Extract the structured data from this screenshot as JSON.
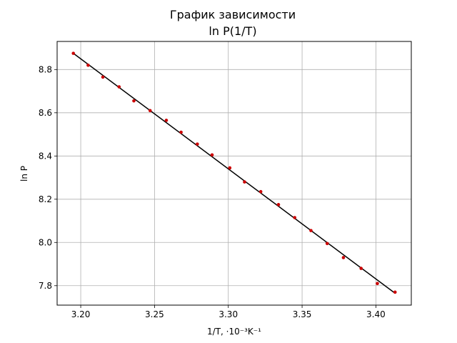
{
  "chart_data": {
    "type": "scatter",
    "title_line1": "График зависимости",
    "title_line2": "ln P(1/T)",
    "xlabel": "1/T, ·10⁻³K⁻¹",
    "ylabel": "ln P",
    "xlim": [
      3.184,
      3.424
    ],
    "ylim": [
      7.71,
      8.93
    ],
    "xticks": [
      3.2,
      3.25,
      3.3,
      3.35,
      3.4
    ],
    "xtick_labels": [
      "3.20",
      "3.25",
      "3.30",
      "3.35",
      "3.40"
    ],
    "yticks": [
      7.8,
      8.0,
      8.2,
      8.4,
      8.6,
      8.8
    ],
    "ytick_labels": [
      "7.8",
      "8.0",
      "8.2",
      "8.4",
      "8.6",
      "8.8"
    ],
    "grid": true,
    "series": [
      {
        "kind": "points",
        "color": "#cc0000",
        "x": [
          3.195,
          3.205,
          3.215,
          3.226,
          3.236,
          3.247,
          3.258,
          3.268,
          3.279,
          3.289,
          3.301,
          3.311,
          3.322,
          3.334,
          3.345,
          3.356,
          3.367,
          3.378,
          3.39,
          3.401,
          3.413
        ],
        "y": [
          8.875,
          8.82,
          8.765,
          8.72,
          8.655,
          8.61,
          8.565,
          8.51,
          8.455,
          8.405,
          8.345,
          8.28,
          8.235,
          8.175,
          8.115,
          8.055,
          7.995,
          7.93,
          7.88,
          7.81,
          7.77
        ]
      },
      {
        "kind": "line",
        "color": "#000000",
        "x": [
          3.195,
          3.413
        ],
        "y": [
          8.875,
          7.765
        ]
      }
    ]
  }
}
